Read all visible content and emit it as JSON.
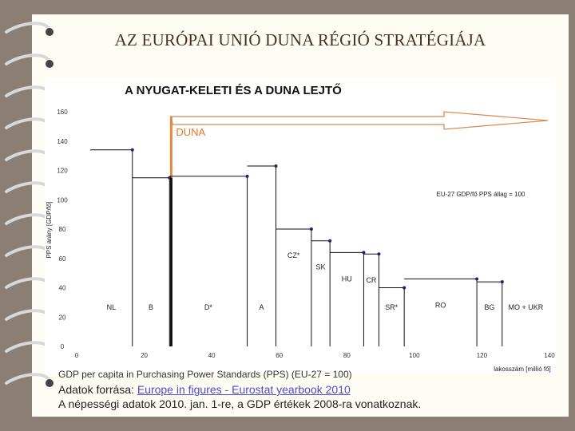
{
  "slide_title": "AZ EURÓPAI UNIÓ DUNA RÉGIÓ STRATÉGIÁJA",
  "chart_data": {
    "type": "bar",
    "title": "A NYUGAT-KELETI ÉS A DUNA LEJTŐ",
    "xlabel": "lakosszám [millió fő]",
    "ylabel": "PPS arány [GDP/fő]",
    "xlim": [
      0,
      140
    ],
    "ylim": [
      0,
      160
    ],
    "xticks": [
      "0",
      "20",
      "40",
      "60",
      "80",
      "100",
      "120",
      "140"
    ],
    "yticks": [
      "0",
      "20",
      "40",
      "60",
      "80",
      "100",
      "120",
      "140",
      "160"
    ],
    "reference_note": "EU-27 GDP/fő PPS állag = 100",
    "arrow_label": "DUNA",
    "duna_line_x": 28,
    "steps": [
      {
        "label": "NL",
        "x_start": 4,
        "x_end": 16.5,
        "value": 134
      },
      {
        "label": "B",
        "x_start": 16.5,
        "x_end": 27.5,
        "value": 115
      },
      {
        "label": "D*",
        "x_start": 27.5,
        "x_end": 50.5,
        "value": 116
      },
      {
        "label": "A",
        "x_start": 50.5,
        "x_end": 59,
        "value": 123
      },
      {
        "label": "CZ*",
        "x_start": 59,
        "x_end": 69.5,
        "value": 80
      },
      {
        "label": "SK",
        "x_start": 69.5,
        "x_end": 75,
        "value": 72
      },
      {
        "label": "HU",
        "x_start": 75,
        "x_end": 85,
        "value": 64
      },
      {
        "label": "CR",
        "x_start": 85,
        "x_end": 89.5,
        "value": 63
      },
      {
        "label": "SR*",
        "x_start": 89.5,
        "x_end": 97,
        "value": 40
      },
      {
        "label": "RO",
        "x_start": 97,
        "x_end": 118.5,
        "value": 46
      },
      {
        "label": "BG",
        "x_start": 118.5,
        "x_end": 126,
        "value": 44
      },
      {
        "label": "MO + UKR",
        "x_start": 126,
        "x_end": 140,
        "value": null
      }
    ]
  },
  "footer": {
    "line1": "GDP per capita in Purchasing Power Standards (PPS) (EU-27 = 100)",
    "line2_prefix": "Adatok forrása: ",
    "line2_link": "Europe in figures - Eurostat yearbook 2010",
    "line3": "A népességi adatok 2010. jan. 1-re, a GDP értékek 2008-ra vonatkoznak."
  }
}
